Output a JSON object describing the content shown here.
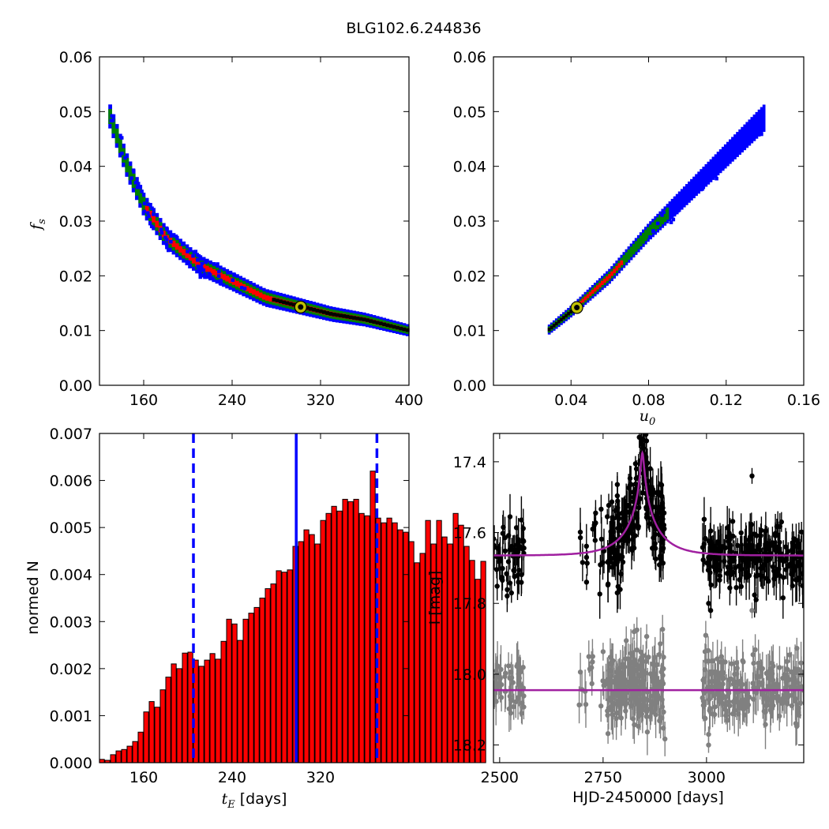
{
  "title": "BLG102.6.244836",
  "chart_data": [
    {
      "type": "heatmap",
      "xlim": [
        120,
        400
      ],
      "ylim": [
        0.0,
        0.06
      ],
      "xticks": [
        "160",
        "240",
        "320",
        "400"
      ],
      "yticks": [
        "0.00",
        "0.01",
        "0.02",
        "0.03",
        "0.04",
        "0.05",
        "0.06"
      ],
      "xlabel": "",
      "ylabel": "f_s",
      "ylabel_parts": {
        "main": "f",
        "sub": "s"
      },
      "band": {
        "relation": "f_s decreasing with t_E",
        "points": [
          [
            128,
            0.05
          ],
          [
            145,
            0.04
          ],
          [
            160,
            0.033
          ],
          [
            180,
            0.027
          ],
          [
            210,
            0.022
          ],
          [
            240,
            0.019
          ],
          [
            270,
            0.016
          ],
          [
            300,
            0.0145
          ],
          [
            330,
            0.013
          ],
          [
            360,
            0.012
          ],
          [
            400,
            0.01
          ]
        ]
      },
      "best_fit": {
        "x": 302,
        "y": 0.0143
      },
      "colors": {
        "outer": "#0000ff",
        "mid": "#008000",
        "inner": "#ff0000",
        "core": "#000000",
        "marker": "#bfbf00"
      }
    },
    {
      "type": "heatmap",
      "xlim": [
        0.0,
        0.16
      ],
      "ylim": [
        0.0,
        0.06
      ],
      "xticks": [
        "0.04",
        "0.08",
        "0.12",
        "0.16"
      ],
      "yticks": [
        "0.00",
        "0.01",
        "0.02",
        "0.03",
        "0.04",
        "0.05",
        "0.06"
      ],
      "xlabel": "u_0",
      "xlabel_parts": {
        "main": "u",
        "sub": "0"
      },
      "ylabel": "",
      "band": {
        "relation": "f_s increasing with u_0",
        "points": [
          [
            0.028,
            0.01
          ],
          [
            0.04,
            0.0135
          ],
          [
            0.06,
            0.02
          ],
          [
            0.08,
            0.028
          ],
          [
            0.1,
            0.035
          ],
          [
            0.12,
            0.042
          ],
          [
            0.14,
            0.049
          ]
        ]
      },
      "best_fit": {
        "x": 0.043,
        "y": 0.0142
      },
      "colors": {
        "outer": "#0000ff",
        "mid": "#008000",
        "inner": "#ff0000",
        "core": "#000000",
        "marker": "#bfbf00"
      }
    },
    {
      "type": "bar",
      "xlim": [
        120,
        400
      ],
      "ylim": [
        0.0,
        0.007
      ],
      "xticks": [
        "160",
        "240",
        "320"
      ],
      "yticks": [
        "0.000",
        "0.001",
        "0.002",
        "0.003",
        "0.004",
        "0.005",
        "0.006",
        "0.007"
      ],
      "xlabel": "t_E [days]",
      "xlabel_parts": {
        "main": "t",
        "sub": "E",
        "rest": " [days]"
      },
      "ylabel": "normed N",
      "bin_start": 120,
      "bin_width": 5,
      "values": [
        7e-05,
        5e-05,
        0.00017,
        0.00025,
        0.00028,
        0.00035,
        0.00045,
        0.00065,
        0.00108,
        0.0013,
        0.00118,
        0.00155,
        0.00182,
        0.0021,
        0.002,
        0.00233,
        0.00235,
        0.00218,
        0.00205,
        0.00218,
        0.00232,
        0.0022,
        0.00258,
        0.00305,
        0.00295,
        0.0026,
        0.00305,
        0.00318,
        0.0033,
        0.0035,
        0.0037,
        0.0038,
        0.00408,
        0.00405,
        0.0041,
        0.0046,
        0.0047,
        0.00495,
        0.00485,
        0.00465,
        0.00515,
        0.0053,
        0.00545,
        0.00535,
        0.0056,
        0.00555,
        0.0056,
        0.0053,
        0.00525,
        0.0062,
        0.0052,
        0.0051,
        0.0052,
        0.0051,
        0.00495,
        0.0049,
        0.0047,
        0.00425,
        0.00445,
        0.00515,
        0.00465,
        0.00515,
        0.0048,
        0.00465,
        0.0053,
        0.00505,
        0.0046,
        0.0043,
        0.0039,
        0.00428
      ],
      "bar_color": "#ff0000",
      "vlines": [
        {
          "x": 205,
          "style": "dashed",
          "color": "#0000ff"
        },
        {
          "x": 298,
          "style": "solid",
          "color": "#0000ff"
        },
        {
          "x": 371,
          "style": "dashed",
          "color": "#0000ff"
        }
      ]
    },
    {
      "type": "scatter",
      "xlim": [
        2485,
        3235
      ],
      "ylim": [
        18.25,
        17.32
      ],
      "xticks": [
        "2500",
        "2750",
        "3000"
      ],
      "yticks": [
        "17.4",
        "17.6",
        "17.8",
        "18.0",
        "18.2"
      ],
      "xlabel": "HJD-2450000 [days]",
      "ylabel": "I [mag]",
      "model": {
        "baseline": 17.665,
        "peak_time": 2845,
        "peak_mag": 17.375,
        "color": "#a020a0"
      },
      "model2": {
        "level": 18.045,
        "color": "#a020a0"
      },
      "series": [
        {
          "name": "",
          "color": "#000000",
          "clusters": [
            {
              "x_range": [
                2485,
                2560
              ],
              "center": 17.66,
              "spread": 0.045,
              "count": 55
            },
            {
              "x_range": [
                2690,
                2760
              ],
              "center": 17.64,
              "spread": 0.06,
              "count": 15
            },
            {
              "x_range": [
                2760,
                2900
              ],
              "center": 17.6,
              "spread": 0.06,
              "count": 220
            },
            {
              "x_range": [
                2990,
                3235
              ],
              "center": 17.66,
              "spread": 0.045,
              "count": 230
            }
          ],
          "outliers": [
            [
              2725,
              17.59
            ],
            [
              3010,
              17.82
            ],
            [
              3110,
              17.44
            ],
            [
              3005,
              17.8
            ],
            [
              2710,
              17.67
            ],
            [
              2710,
              17.74
            ]
          ]
        },
        {
          "name": "",
          "color": "#808080",
          "clusters": [
            {
              "x_range": [
                2485,
                2560
              ],
              "center": 18.04,
              "spread": 0.045,
              "count": 55
            },
            {
              "x_range": [
                2690,
                2760
              ],
              "center": 18.04,
              "spread": 0.06,
              "count": 15
            },
            {
              "x_range": [
                2760,
                2900
              ],
              "center": 18.04,
              "spread": 0.06,
              "count": 220
            },
            {
              "x_range": [
                2990,
                3235
              ],
              "center": 18.04,
              "spread": 0.045,
              "count": 230
            }
          ],
          "outliers": [
            [
              2825,
              17.88
            ],
            [
              2725,
              17.95
            ],
            [
              3110,
              17.82
            ],
            [
              3005,
              18.17
            ],
            [
              3005,
              18.2
            ],
            [
              3130,
              17.98
            ]
          ]
        }
      ]
    }
  ]
}
